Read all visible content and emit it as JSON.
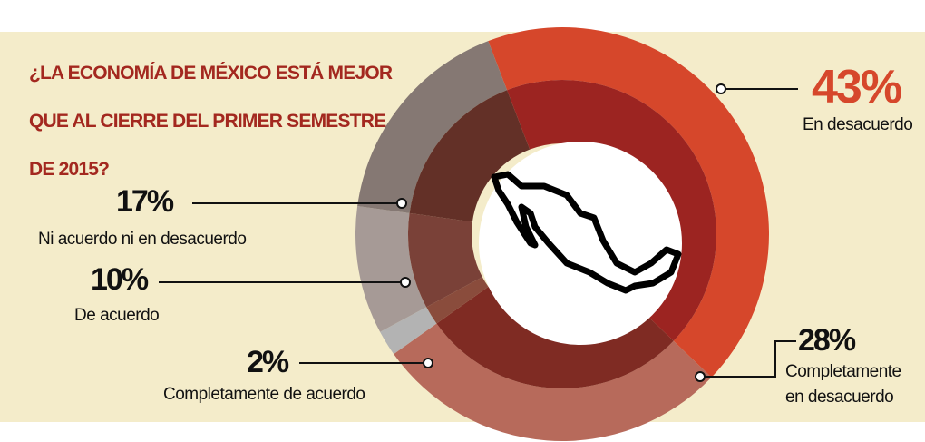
{
  "chart_data": {
    "type": "pie",
    "title": "¿LA ECONOMÍA DE MÉXICO ESTÁ MEJOR QUE AL CIERRE DEL PRIMER SEMESTRE DE 2015?",
    "categories": [
      "En desacuerdo",
      "Completamente en desacuerdo",
      "Completamente de acuerdo",
      "De acuerdo",
      "Ni acuerdo ni en desacuerdo"
    ],
    "values": [
      43,
      28,
      2,
      10,
      17
    ],
    "value_labels": [
      "43%",
      "28%",
      "2%",
      "10%",
      "17%"
    ],
    "colors": [
      "#d6472b",
      "#b76a5b",
      "#b3b3b3",
      "#a69a96",
      "#857873"
    ],
    "inner_colors": [
      "#9c2421",
      "#7f2b23",
      "#8a4c3c",
      "#7a4138",
      "#633027"
    ]
  }
}
